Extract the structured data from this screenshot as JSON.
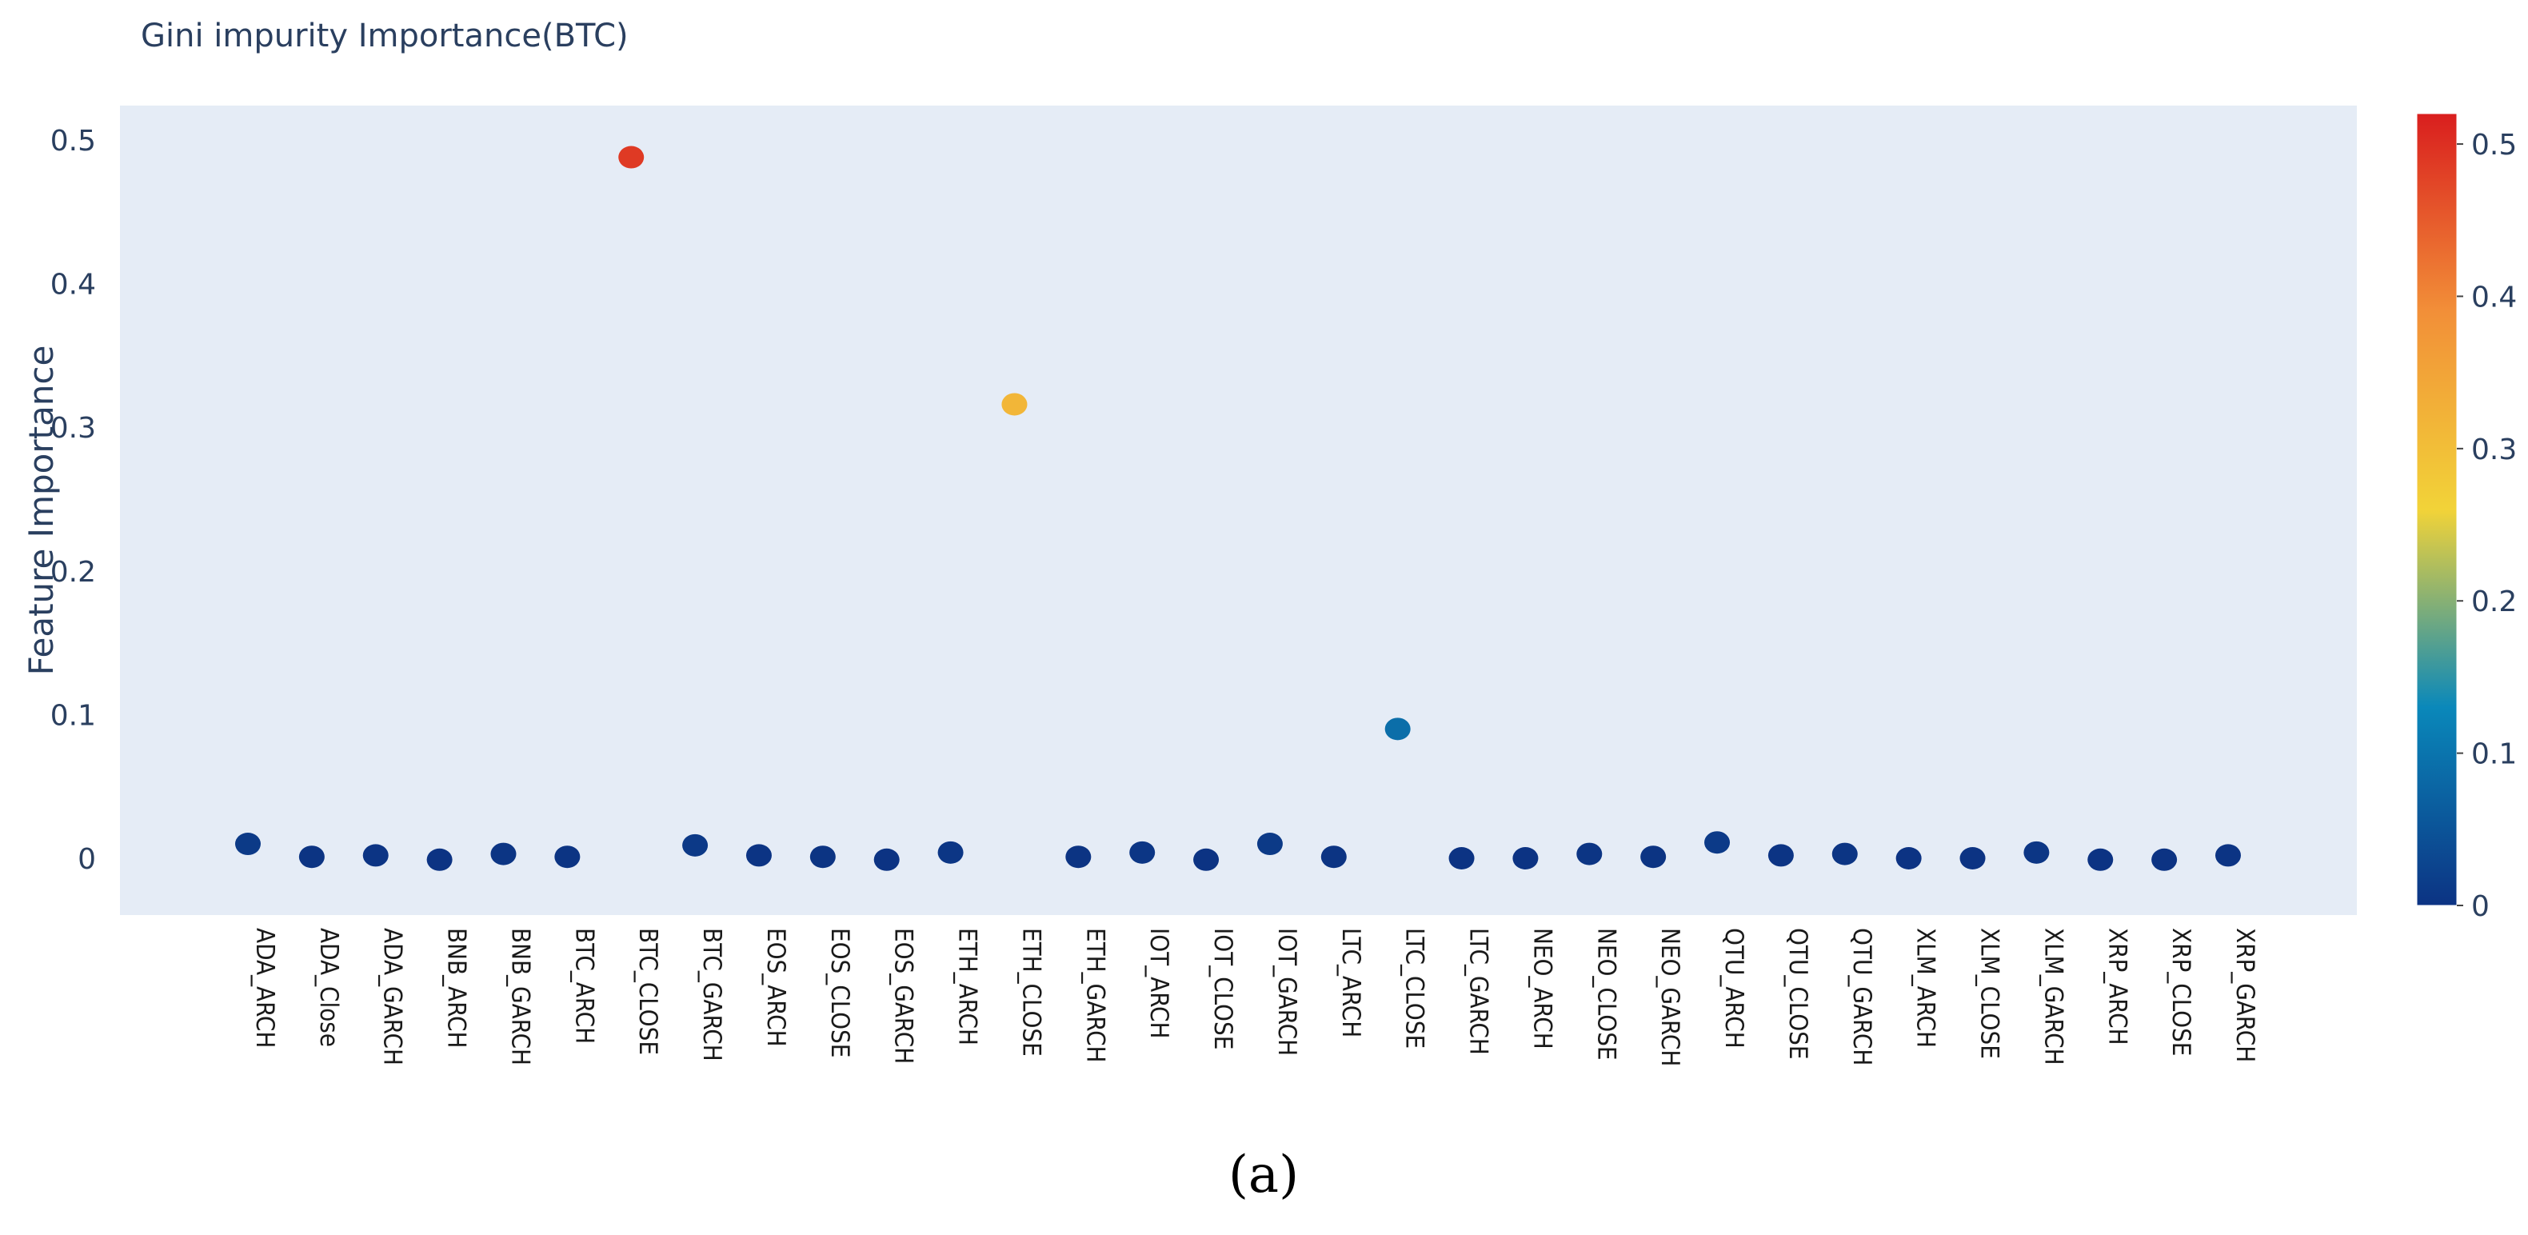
{
  "chart_data": {
    "type": "scatter",
    "title": "Gini impurity Importance(BTC)",
    "xlabel": "",
    "ylabel": "Feature Importance",
    "ylim": [
      -0.04,
      0.52
    ],
    "yticks": [
      0,
      0.1,
      0.2,
      0.3,
      0.4,
      0.5
    ],
    "ytick_labels": [
      "0",
      "0.1",
      "0.2",
      "0.3",
      "0.4",
      "0.5"
    ],
    "grid": false,
    "plot_background": "#e5ecf6",
    "categories": [
      "ADA_ARCH",
      "ADA_Close",
      "ADA_GARCH",
      "BNB_ARCH",
      "BNB_GARCH",
      "BTC_ARCH",
      "BTC_CLOSE",
      "BTC_GARCH",
      "EOS_ARCH",
      "EOS_CLOSE",
      "EOS_GARCH",
      "ETH_ARCH",
      "ETH_CLOSE",
      "ETH_GARCH",
      "IOT_ARCH",
      "IOT_CLOSE",
      "IOT_GARCH",
      "LTC_ARCH",
      "LTC_CLOSE",
      "LTC_GARCH",
      "NEO_ARCH",
      "NEO_CLOSE",
      "NEO_GARCH",
      "QTU_ARCH",
      "QTU_CLOSE",
      "QTU_GARCH",
      "XLM_ARCH",
      "XLM_CLOSE",
      "XLM_GARCH",
      "XRP_ARCH",
      "XRP_CLOSE",
      "XRP_GARCH"
    ],
    "values": [
      0.01,
      0.001,
      0.002,
      -0.001,
      0.003,
      0.001,
      0.488,
      0.009,
      0.002,
      0.001,
      -0.001,
      0.004,
      0.316,
      0.001,
      0.004,
      -0.001,
      0.01,
      0.001,
      0.09,
      0.0,
      0.0,
      0.003,
      0.001,
      0.011,
      0.002,
      0.003,
      0.0,
      0.0,
      0.004,
      -0.001,
      -0.001,
      0.002
    ],
    "colorscale": {
      "name": "Portland",
      "range": [
        0,
        0.52
      ],
      "stops": [
        [
          0,
          "#0c3383"
        ],
        [
          0.25,
          "#0a88ba"
        ],
        [
          0.5,
          "#f2d338"
        ],
        [
          0.75,
          "#f28f38"
        ],
        [
          1,
          "#d91e1e"
        ]
      ],
      "ticks": [
        0,
        0.1,
        0.2,
        0.3,
        0.4,
        0.5
      ],
      "tick_labels": [
        "0",
        "0.1",
        "0.2",
        "0.3",
        "0.4",
        "0.5"
      ]
    }
  },
  "caption": "(a)"
}
